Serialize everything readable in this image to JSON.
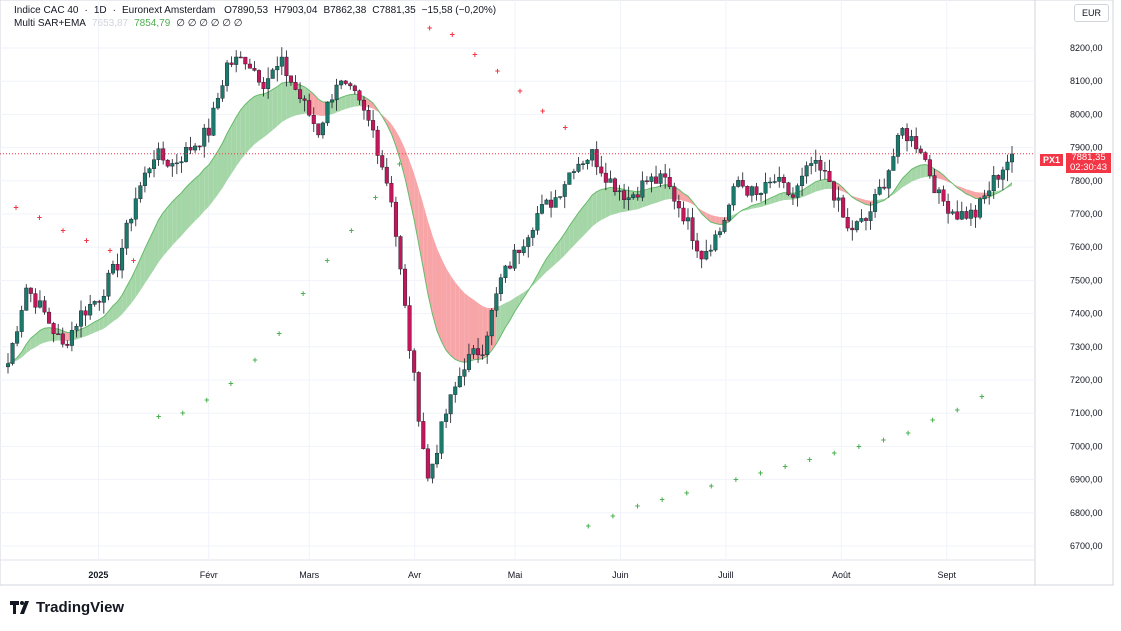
{
  "header": {
    "symbol": "Indice CAC 40",
    "interval": "1D",
    "exchange": "Euronext Amsterdam",
    "open": "O7890,53",
    "high": "H7903,04",
    "low": "B7862,38",
    "close": "C7881,35",
    "change": "−15,58 (−0,20%)"
  },
  "indicator": {
    "name": "Multi SAR+EMA",
    "value1": "7653,87",
    "value2": "7854,79",
    "placeholders": "∅ ∅ ∅ ∅ ∅ ∅"
  },
  "currency": "EUR",
  "price_label": {
    "tag": "PX1",
    "price": "7881,35",
    "countdown": "02:30:43"
  },
  "brand": "TradingView",
  "colors": {
    "up": "#26a69a",
    "down": "#ef5350",
    "bandUp": "#a5d6a7",
    "bandDown": "#f8a5a8",
    "sar_up": "#4caf50",
    "sar_down": "#f23645"
  },
  "chart_data": {
    "type": "candlestick",
    "ylim": [
      6650,
      8260
    ],
    "y_ticks": [
      "8200,00",
      "8100,00",
      "8000,00",
      "7900,00",
      "7800,00",
      "7700,00",
      "7600,00",
      "7500,00",
      "7400,00",
      "7300,00",
      "7200,00",
      "7100,00",
      "7000,00",
      "6900,00",
      "6800,00",
      "6700,00"
    ],
    "x_labels": [
      {
        "label": "2025",
        "pos": 0.09
      },
      {
        "label": "Févr",
        "pos": 0.2
      },
      {
        "label": "Mars",
        "pos": 0.3
      },
      {
        "label": "Avr",
        "pos": 0.405
      },
      {
        "label": "Mai",
        "pos": 0.505
      },
      {
        "label": "Juin",
        "pos": 0.61
      },
      {
        "label": "Juill",
        "pos": 0.715
      },
      {
        "label": "Août",
        "pos": 0.83
      },
      {
        "label": "Sept",
        "pos": 0.935
      }
    ],
    "closes": [
      7250,
      7480,
      7400,
      7300,
      7400,
      7450,
      7550,
      7750,
      7880,
      7850,
      7900,
      7950,
      8150,
      8170,
      8100,
      8150,
      8050,
      7950,
      8100,
      8050,
      7950,
      7750,
      7300,
      6900,
      7100,
      7250,
      7300,
      7500,
      7600,
      7700,
      7750,
      7850,
      7880,
      7800,
      7750,
      7800,
      7800,
      7700,
      7580,
      7650,
      7800,
      7750,
      7800,
      7750,
      7850,
      7800,
      7650,
      7680,
      7800,
      7950,
      7900,
      7750,
      7700,
      7700,
      7800,
      7881
    ],
    "sar": [
      {
        "trend": "down",
        "from": 0.008,
        "to": 0.125,
        "values": [
          7720,
          7690,
          7650,
          7620,
          7590,
          7560
        ]
      },
      {
        "trend": "up",
        "from": 0.15,
        "to": 0.39,
        "values": [
          7090,
          7100,
          7140,
          7190,
          7260,
          7340,
          7460,
          7560,
          7650,
          7750,
          7850
        ]
      },
      {
        "trend": "down",
        "from": 0.42,
        "to": 0.555,
        "values": [
          8260,
          8240,
          8180,
          8130,
          8070,
          8010,
          7960
        ]
      },
      {
        "trend": "up",
        "from": 0.578,
        "to": 0.97,
        "values": [
          6760,
          6790,
          6820,
          6840,
          6860,
          6880,
          6900,
          6920,
          6940,
          6960,
          6980,
          7000,
          7020,
          7040,
          7080,
          7110,
          7150
        ]
      }
    ],
    "last_price": 7881.35
  }
}
